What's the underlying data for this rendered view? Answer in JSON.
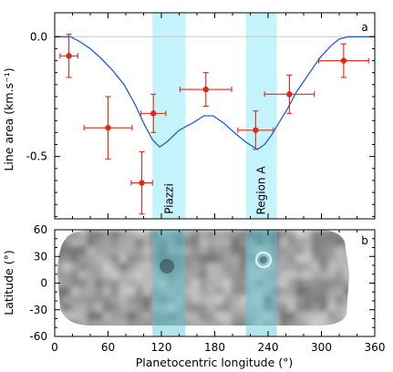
{
  "figure": {
    "xlabel": "Planetocentric longitude (°)",
    "x_ticks": [
      "0",
      "60",
      "120",
      "180",
      "240",
      "300",
      "360"
    ],
    "colors": {
      "band": "#c5f3fb",
      "model": "#1f5fd6",
      "data": "#dd2a12",
      "zero_line": "#c8c8c8"
    }
  },
  "chart_data": [
    {
      "type": "line",
      "panel_label": "a",
      "ylabel": "Line area (km.s⁻¹)",
      "xlim": [
        0,
        360
      ],
      "ylim": [
        -0.76,
        0.1
      ],
      "y_ticks": [
        0.0,
        -0.5
      ],
      "y_tick_labels": [
        "0.0",
        "-0.5"
      ],
      "grid": false,
      "regions": [
        {
          "label": "Piazzi",
          "x0": 110,
          "x1": 147
        },
        {
          "label": "Region A",
          "x0": 215,
          "x1": 250
        }
      ],
      "series": [
        {
          "kind": "model_curve",
          "x": [
            0,
            18,
            28,
            40,
            52,
            65,
            78,
            90,
            100,
            110,
            118,
            126,
            140,
            155,
            168,
            178,
            190,
            202,
            215,
            228,
            236,
            244,
            252,
            262,
            272,
            285,
            298,
            310,
            320,
            330,
            345,
            360
          ],
          "y": [
            0.0,
            0.0,
            -0.02,
            -0.05,
            -0.09,
            -0.14,
            -0.2,
            -0.28,
            -0.36,
            -0.43,
            -0.46,
            -0.44,
            -0.39,
            -0.36,
            -0.33,
            -0.33,
            -0.36,
            -0.4,
            -0.44,
            -0.47,
            -0.45,
            -0.41,
            -0.36,
            -0.3,
            -0.23,
            -0.16,
            -0.09,
            -0.04,
            -0.01,
            0.0,
            0.0,
            0.0
          ]
        },
        {
          "kind": "measurements",
          "x": [
            16,
            60,
            98,
            111,
            170,
            226,
            264,
            325
          ],
          "y": [
            -0.08,
            -0.38,
            -0.61,
            -0.32,
            -0.22,
            -0.39,
            -0.24,
            -0.1
          ],
          "x_err": [
            10,
            27,
            12,
            14,
            29,
            20,
            28,
            28
          ],
          "y_err": [
            0.09,
            0.13,
            0.13,
            0.08,
            0.07,
            0.08,
            0.08,
            0.07
          ]
        }
      ]
    },
    {
      "type": "heatmap",
      "panel_label": "b",
      "ylabel": "Latitude (°)",
      "xlim": [
        0,
        360
      ],
      "ylim": [
        -60,
        60
      ],
      "y_ticks": [
        60,
        30,
        0,
        -30,
        -60
      ],
      "y_tick_labels": [
        "60",
        "30",
        "0",
        "-30",
        "-60"
      ],
      "colormap": "grayscale",
      "regions": [
        {
          "x0": 110,
          "x1": 147
        },
        {
          "x0": 215,
          "x1": 250
        }
      ]
    }
  ]
}
